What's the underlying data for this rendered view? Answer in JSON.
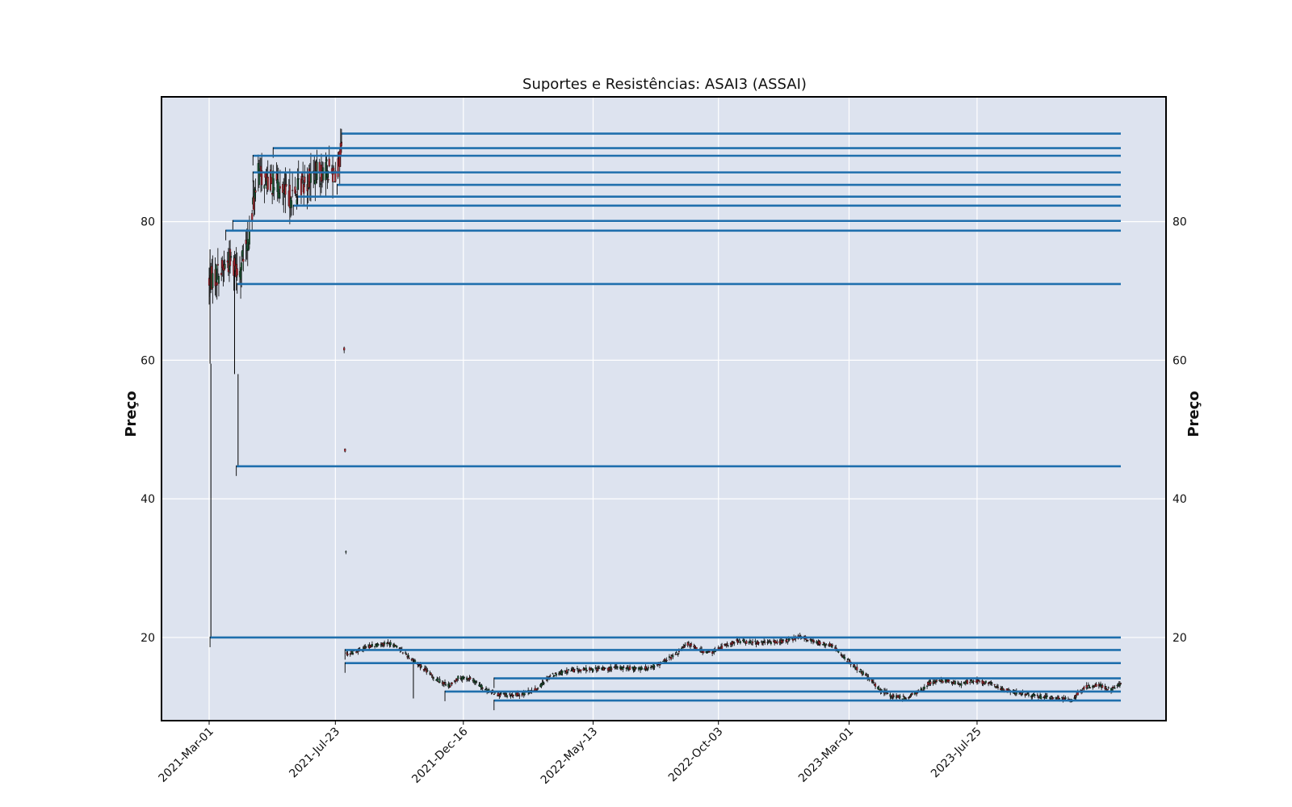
{
  "chart_data": {
    "type": "candlestick",
    "title": "Suportes e Resistências: ASAI3 (ASSAI)",
    "ylabel_left": "Preço",
    "ylabel_right": "Preço",
    "xlabel": "",
    "x_start": "2021-03-01",
    "x_end": "2024-01-05",
    "ylim": [
      8,
      98
    ],
    "y_ticks": [
      20,
      40,
      60,
      80
    ],
    "x_ticks": [
      {
        "label": "2021-Mar-01",
        "date": "2021-03-01"
      },
      {
        "label": "2021-Jul-23",
        "date": "2021-07-23"
      },
      {
        "label": "2021-Dec-16",
        "date": "2021-12-16"
      },
      {
        "label": "2022-May-13",
        "date": "2022-05-13"
      },
      {
        "label": "2022-Oct-03",
        "date": "2022-10-03"
      },
      {
        "label": "2023-Mar-01",
        "date": "2023-03-01"
      },
      {
        "label": "2023-Jul-25",
        "date": "2023-07-25"
      }
    ],
    "grid": true,
    "background": "#dde3ef",
    "line_color": "#1f6fad",
    "up_color": "#1e5a36",
    "down_color": "#a8272f",
    "support_resistance_lines": [
      {
        "start": "2021-07-30",
        "level": 92.7
      },
      {
        "start": "2021-05-13",
        "level": 90.6
      },
      {
        "start": "2021-04-20",
        "level": 89.5
      },
      {
        "start": "2021-04-20",
        "level": 87.1
      },
      {
        "start": "2021-07-25",
        "level": 85.3
      },
      {
        "start": "2021-06-10",
        "level": 83.6
      },
      {
        "start": "2021-06-05",
        "level": 82.3
      },
      {
        "start": "2021-03-28",
        "level": 80.1
      },
      {
        "start": "2021-03-20",
        "level": 78.7
      },
      {
        "start": "2021-04-02",
        "level": 71.0
      },
      {
        "start": "2021-04-01",
        "level": 44.7
      },
      {
        "start": "2021-03-02",
        "level": 20.0
      },
      {
        "start": "2021-08-03",
        "level": 18.2
      },
      {
        "start": "2021-08-03",
        "level": 16.3
      },
      {
        "start": "2022-01-20",
        "level": 14.1
      },
      {
        "start": "2021-11-25",
        "level": 12.2
      },
      {
        "start": "2022-01-20",
        "level": 10.9
      }
    ],
    "price_path": [
      [
        "2021-03-01",
        71.5
      ],
      [
        "2021-03-15",
        73.0
      ],
      [
        "2021-03-25",
        74.5
      ],
      [
        "2021-04-05",
        73.0
      ],
      [
        "2021-04-15",
        77.0
      ],
      [
        "2021-04-25",
        87.0
      ],
      [
        "2021-05-05",
        86.0
      ],
      [
        "2021-05-15",
        85.5
      ],
      [
        "2021-05-25",
        84.0
      ],
      [
        "2021-06-05",
        83.5
      ],
      [
        "2021-06-15",
        85.5
      ],
      [
        "2021-06-25",
        86.5
      ],
      [
        "2021-07-05",
        87.0
      ],
      [
        "2021-07-15",
        87.5
      ],
      [
        "2021-07-25",
        87.0
      ],
      [
        "2021-07-31",
        91.0
      ],
      [
        "2021-08-05",
        17.6
      ],
      [
        "2021-08-20",
        18.2
      ],
      [
        "2021-09-01",
        18.8
      ],
      [
        "2021-09-20",
        19.2
      ],
      [
        "2021-10-01",
        18.8
      ],
      [
        "2021-10-15",
        17.2
      ],
      [
        "2021-11-01",
        15.5
      ],
      [
        "2021-11-15",
        14.0
      ],
      [
        "2021-12-01",
        13.0
      ],
      [
        "2021-12-10",
        14.2
      ],
      [
        "2021-12-25",
        14.0
      ],
      [
        "2022-01-10",
        12.5
      ],
      [
        "2022-01-25",
        11.8
      ],
      [
        "2022-02-10",
        11.6
      ],
      [
        "2022-02-25",
        12.0
      ],
      [
        "2022-03-10",
        12.5
      ],
      [
        "2022-03-25",
        14.5
      ],
      [
        "2022-04-15",
        15.2
      ],
      [
        "2022-05-10",
        15.4
      ],
      [
        "2022-06-10",
        15.6
      ],
      [
        "2022-07-10",
        15.5
      ],
      [
        "2022-07-25",
        16.0
      ],
      [
        "2022-08-15",
        17.5
      ],
      [
        "2022-08-30",
        19.2
      ],
      [
        "2022-09-10",
        18.2
      ],
      [
        "2022-09-25",
        17.8
      ],
      [
        "2022-10-05",
        18.5
      ],
      [
        "2022-10-25",
        19.5
      ],
      [
        "2022-11-20",
        19.2
      ],
      [
        "2022-12-20",
        19.5
      ],
      [
        "2023-01-05",
        20.2
      ],
      [
        "2023-01-20",
        19.4
      ],
      [
        "2023-02-10",
        18.8
      ],
      [
        "2023-03-01",
        16.5
      ],
      [
        "2023-03-20",
        14.5
      ],
      [
        "2023-04-05",
        12.5
      ],
      [
        "2023-04-20",
        11.5
      ],
      [
        "2023-05-05",
        11.3
      ],
      [
        "2023-05-20",
        12.2
      ],
      [
        "2023-06-01",
        13.5
      ],
      [
        "2023-06-20",
        13.8
      ],
      [
        "2023-07-05",
        13.2
      ],
      [
        "2023-07-20",
        13.8
      ],
      [
        "2023-08-05",
        13.5
      ],
      [
        "2023-08-25",
        12.5
      ],
      [
        "2023-09-10",
        12.0
      ],
      [
        "2023-09-30",
        11.5
      ],
      [
        "2023-10-20",
        11.3
      ],
      [
        "2023-11-10",
        11.0
      ],
      [
        "2023-11-25",
        12.8
      ],
      [
        "2023-12-10",
        13.2
      ],
      [
        "2023-12-25",
        12.5
      ],
      [
        "2024-01-05",
        13.2
      ]
    ]
  }
}
